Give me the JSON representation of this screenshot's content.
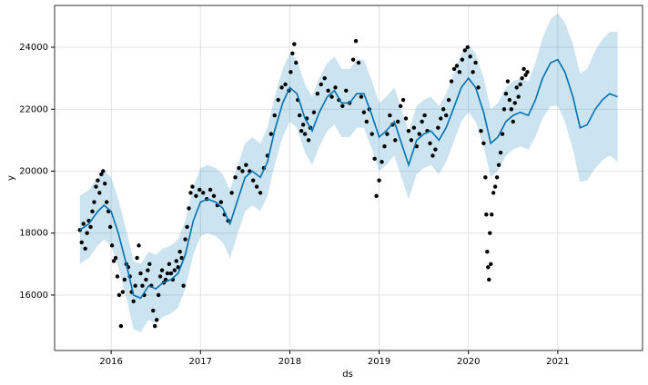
{
  "chart_data": {
    "type": "forecast",
    "xlabel": "ds",
    "ylabel": "y",
    "xlim": [
      2015.367,
      2021.949
    ],
    "ylim": [
      14211,
      25349
    ],
    "xticks": [
      2016,
      2017,
      2018,
      2019,
      2020,
      2021
    ],
    "yticks": [
      16000,
      18000,
      20000,
      22000,
      24000
    ],
    "grid": true,
    "points": {
      "color": "#000000",
      "x": [
        2015.65,
        2015.67,
        2015.69,
        2015.71,
        2015.73,
        2015.75,
        2015.77,
        2015.79,
        2015.81,
        2015.83,
        2015.85,
        2015.87,
        2015.89,
        2015.91,
        2015.93,
        2015.95,
        2015.97,
        2015.99,
        2016.01,
        2016.03,
        2016.05,
        2016.07,
        2016.09,
        2016.11,
        2016.13,
        2016.15,
        2016.17,
        2016.19,
        2016.21,
        2016.23,
        2016.25,
        2016.27,
        2016.29,
        2016.31,
        2016.33,
        2016.35,
        2016.37,
        2016.39,
        2016.41,
        2016.43,
        2016.45,
        2016.47,
        2016.49,
        2016.51,
        2016.53,
        2016.55,
        2016.57,
        2016.59,
        2016.61,
        2016.63,
        2016.65,
        2016.67,
        2016.69,
        2016.71,
        2016.73,
        2016.75,
        2016.77,
        2016.79,
        2016.81,
        2016.83,
        2016.85,
        2016.87,
        2016.89,
        2016.91,
        2016.95,
        2016.99,
        2017.03,
        2017.07,
        2017.11,
        2017.15,
        2017.19,
        2017.23,
        2017.27,
        2017.31,
        2017.35,
        2017.39,
        2017.43,
        2017.47,
        2017.51,
        2017.55,
        2017.59,
        2017.63,
        2017.67,
        2017.71,
        2017.75,
        2017.79,
        2017.83,
        2017.87,
        2017.91,
        2017.95,
        2017.99,
        2018.01,
        2018.03,
        2018.05,
        2018.07,
        2018.09,
        2018.11,
        2018.13,
        2018.15,
        2018.17,
        2018.19,
        2018.21,
        2018.23,
        2018.27,
        2018.31,
        2018.35,
        2018.39,
        2018.43,
        2018.47,
        2018.51,
        2018.55,
        2018.59,
        2018.63,
        2018.67,
        2018.71,
        2018.74,
        2018.77,
        2018.8,
        2018.83,
        2018.86,
        2018.89,
        2018.92,
        2018.95,
        2018.97,
        2019.0,
        2019.03,
        2019.06,
        2019.09,
        2019.12,
        2019.15,
        2019.18,
        2019.21,
        2019.24,
        2019.27,
        2019.3,
        2019.33,
        2019.36,
        2019.39,
        2019.42,
        2019.45,
        2019.48,
        2019.51,
        2019.54,
        2019.57,
        2019.6,
        2019.63,
        2019.66,
        2019.69,
        2019.72,
        2019.75,
        2019.78,
        2019.81,
        2019.84,
        2019.87,
        2019.9,
        2019.93,
        2019.96,
        2019.99,
        2020.02,
        2020.05,
        2020.08,
        2020.11,
        2020.14,
        2020.17,
        2020.19,
        2020.2,
        2020.21,
        2020.22,
        2020.23,
        2020.24,
        2020.25,
        2020.26,
        2020.28,
        2020.3,
        2020.32,
        2020.34,
        2020.36,
        2020.38,
        2020.4,
        2020.42,
        2020.44,
        2020.46,
        2020.48,
        2020.5,
        2020.52,
        2020.54,
        2020.56,
        2020.58,
        2020.6,
        2020.62,
        2020.64,
        2020.66
      ],
      "values": [
        18100,
        17700,
        18300,
        17500,
        18000,
        18400,
        18200,
        18700,
        19000,
        19500,
        19700,
        19300,
        19900,
        20000,
        19600,
        19000,
        18700,
        18200,
        17600,
        17100,
        17200,
        16600,
        16000,
        15000,
        16100,
        16500,
        17000,
        16900,
        16600,
        16100,
        15800,
        16300,
        17200,
        17600,
        16700,
        16300,
        16000,
        16500,
        16800,
        17000,
        16300,
        15500,
        15000,
        15200,
        16000,
        16600,
        16800,
        16400,
        16500,
        16700,
        17000,
        16700,
        16500,
        16800,
        17100,
        16900,
        17400,
        17200,
        16300,
        17800,
        18200,
        18800,
        19300,
        19500,
        19200,
        19400,
        19300,
        19100,
        19400,
        19200,
        18900,
        19000,
        18600,
        18400,
        19300,
        19800,
        20100,
        20000,
        20200,
        20000,
        19700,
        19500,
        19300,
        20100,
        20500,
        21200,
        21800,
        22300,
        22700,
        22800,
        22600,
        23200,
        23800,
        24100,
        23500,
        22300,
        21800,
        21300,
        21500,
        21200,
        21700,
        21000,
        21400,
        21900,
        22500,
        22800,
        23000,
        22600,
        22400,
        22700,
        22300,
        22100,
        22600,
        22200,
        23600,
        24200,
        23500,
        22400,
        21900,
        21600,
        22000,
        21200,
        20400,
        19200,
        19700,
        20300,
        20800,
        21200,
        21800,
        21500,
        21000,
        21600,
        22100,
        22300,
        21700,
        21300,
        21000,
        21400,
        20800,
        21200,
        21600,
        21800,
        21300,
        20900,
        20500,
        20700,
        21400,
        21700,
        22000,
        21800,
        22300,
        22900,
        23300,
        23400,
        23200,
        23600,
        23900,
        24000,
        23700,
        23200,
        23500,
        22700,
        21300,
        20900,
        19800,
        18600,
        17400,
        16900,
        16500,
        18000,
        17000,
        18600,
        19300,
        19500,
        19800,
        20200,
        20600,
        21200,
        22000,
        22500,
        22900,
        22300,
        22000,
        21600,
        22200,
        22700,
        22400,
        22800,
        23000,
        23300,
        23100,
        23200
      ]
    },
    "forecast": {
      "color": "#0072B2",
      "x": [
        2015.65,
        2015.75,
        2015.85,
        2015.92,
        2016.0,
        2016.08,
        2016.17,
        2016.25,
        2016.33,
        2016.42,
        2016.5,
        2016.58,
        2016.67,
        2016.75,
        2016.83,
        2016.92,
        2017.0,
        2017.08,
        2017.17,
        2017.25,
        2017.33,
        2017.42,
        2017.5,
        2017.58,
        2017.67,
        2017.75,
        2017.83,
        2017.92,
        2018.0,
        2018.08,
        2018.17,
        2018.25,
        2018.33,
        2018.42,
        2018.5,
        2018.58,
        2018.67,
        2018.75,
        2018.83,
        2018.92,
        2019.0,
        2019.08,
        2019.17,
        2019.25,
        2019.33,
        2019.42,
        2019.5,
        2019.58,
        2019.67,
        2019.75,
        2019.83,
        2019.92,
        2020.0,
        2020.08,
        2020.17,
        2020.25,
        2020.33,
        2020.42,
        2020.5,
        2020.58,
        2020.67,
        2020.75,
        2020.83,
        2020.92,
        2021.0,
        2021.08,
        2021.17,
        2021.25,
        2021.33,
        2021.42,
        2021.5,
        2021.58,
        2021.67
      ],
      "values": [
        18100,
        18300,
        18700,
        18900,
        18700,
        18000,
        17000,
        16000,
        15900,
        16300,
        16200,
        16400,
        16500,
        16700,
        17300,
        18400,
        19000,
        19100,
        19000,
        18800,
        18300,
        19100,
        19800,
        20000,
        19800,
        20300,
        21300,
        22200,
        22700,
        22500,
        21700,
        21300,
        21900,
        22400,
        22600,
        22200,
        22200,
        22500,
        22500,
        21800,
        21100,
        21300,
        21600,
        20900,
        20200,
        21000,
        21200,
        21300,
        21000,
        21400,
        22000,
        22700,
        23000,
        22700,
        21900,
        20900,
        21100,
        21600,
        21800,
        21900,
        21800,
        22300,
        23000,
        23500,
        23600,
        23200,
        22400,
        21400,
        21500,
        22000,
        22300,
        22500,
        22400
      ],
      "lower": [
        17000,
        17200,
        17600,
        17800,
        17600,
        16900,
        15900,
        14900,
        14800,
        15200,
        15100,
        15300,
        15400,
        15600,
        16200,
        17300,
        17900,
        18000,
        17900,
        17700,
        17200,
        18000,
        18700,
        18900,
        18700,
        19200,
        20200,
        21100,
        21600,
        21400,
        20600,
        20200,
        20800,
        21300,
        21500,
        21100,
        21100,
        21400,
        21400,
        20700,
        20000,
        20200,
        20500,
        19800,
        19100,
        19900,
        20100,
        20200,
        19900,
        20300,
        20900,
        21600,
        21900,
        21600,
        20800,
        19800,
        20000,
        20500,
        20700,
        20800,
        20700,
        21100,
        21700,
        22100,
        22100,
        21600,
        20700,
        19650,
        19700,
        20100,
        20350,
        20500,
        20300
      ],
      "upper": [
        19200,
        19400,
        19800,
        20000,
        19800,
        19100,
        18100,
        17100,
        17000,
        17400,
        17300,
        17500,
        17600,
        17800,
        18400,
        19500,
        20100,
        20200,
        20100,
        19900,
        19400,
        20200,
        20900,
        21100,
        20900,
        21400,
        22400,
        23300,
        23800,
        23600,
        22800,
        22400,
        23000,
        23500,
        23700,
        23300,
        23300,
        23600,
        23600,
        22900,
        22200,
        22400,
        22700,
        22000,
        21300,
        22100,
        22300,
        22400,
        22100,
        22500,
        23100,
        23800,
        24100,
        23800,
        23000,
        22000,
        22200,
        22700,
        22900,
        23000,
        22900,
        23500,
        24300,
        24900,
        25100,
        24800,
        24100,
        23150,
        23300,
        23900,
        24250,
        24500,
        24500
      ]
    }
  }
}
